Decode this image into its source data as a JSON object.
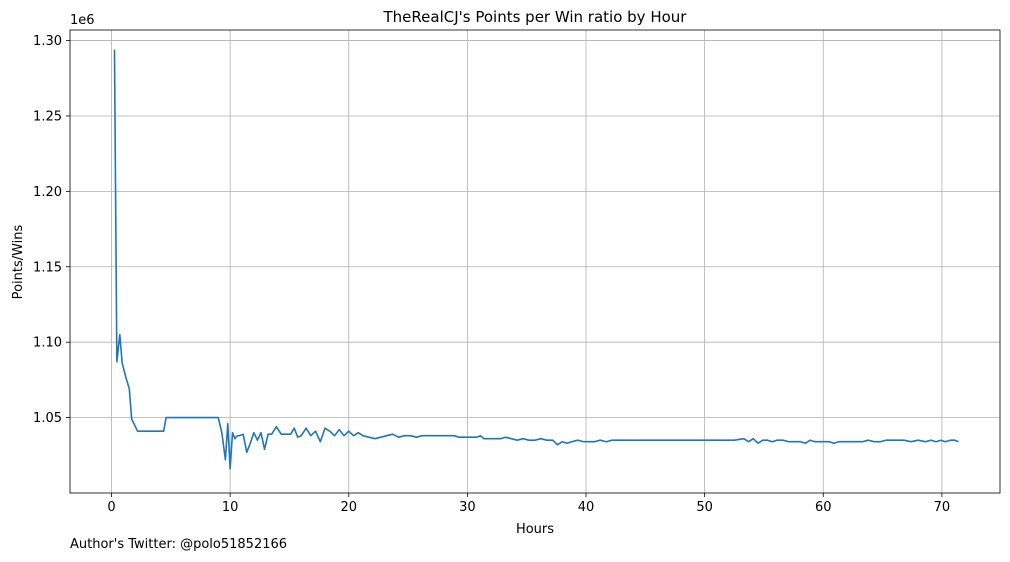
{
  "chart_data": {
    "type": "line",
    "title": "TheRealCJ's Points per Win ratio by Hour",
    "xlabel": "Hours",
    "ylabel": "Points/Wins",
    "y_offset_label": "1e6",
    "xlim": [
      -3.5,
      74.9
    ],
    "ylim": [
      1000000,
      1307000
    ],
    "x_ticks": [
      0,
      10,
      20,
      30,
      40,
      50,
      60,
      70
    ],
    "y_ticks": [
      1.0,
      1.05,
      1.1,
      1.15,
      1.2,
      1.25,
      1.3
    ],
    "y_tick_labels": [
      "",
      "1.05",
      "1.10",
      "1.15",
      "1.20",
      "1.25",
      "1.30"
    ],
    "grid": true,
    "line_color": "#1f77b4",
    "series": [
      {
        "x": [
          0.25,
          0.45,
          0.7,
          0.9,
          1.2,
          1.5,
          1.7,
          2.2,
          3.0,
          4.0,
          4.4,
          4.6,
          5.5,
          6.5,
          7.5,
          8.5,
          9.0,
          9.3,
          9.6,
          9.8,
          10.0,
          10.2,
          10.4,
          10.6,
          10.8,
          11.1,
          11.4,
          11.7,
          12.0,
          12.3,
          12.6,
          12.9,
          13.2,
          13.5,
          13.9,
          14.3,
          14.7,
          15.1,
          15.4,
          15.7,
          16.0,
          16.4,
          16.8,
          17.2,
          17.6,
          18.0,
          18.4,
          18.8,
          19.2,
          19.6,
          20.0,
          20.4,
          20.8,
          21.2,
          21.7,
          22.2,
          22.7,
          23.2,
          23.7,
          24.2,
          24.7,
          25.2,
          25.7,
          26.2,
          26.8,
          27.5,
          28.2,
          28.9,
          29.3,
          29.8,
          30.3,
          30.8,
          31.1,
          31.4,
          31.8,
          32.3,
          32.8,
          33.2,
          33.7,
          34.2,
          34.7,
          35.2,
          35.7,
          36.2,
          36.7,
          37.2,
          37.6,
          38.0,
          38.4,
          38.8,
          39.3,
          39.8,
          40.2,
          40.7,
          41.2,
          41.7,
          42.2,
          42.7,
          43.2,
          43.7,
          44.2,
          44.7,
          45.2,
          45.7,
          46.2,
          46.7,
          47.2,
          47.7,
          48.5,
          49.5,
          50.5,
          51.5,
          52.5,
          53.3,
          53.7,
          54.1,
          54.5,
          54.9,
          55.3,
          55.7,
          56.1,
          56.6,
          57.1,
          57.6,
          58.1,
          58.5,
          58.9,
          59.3,
          59.7,
          60.1,
          60.5,
          60.9,
          61.3,
          61.8,
          62.3,
          62.8,
          63.3,
          63.8,
          64.3,
          64.8,
          65.3,
          65.8,
          66.3,
          66.8,
          67.4,
          68.0,
          68.6,
          69.1,
          69.5,
          69.9,
          70.3,
          70.7,
          71.1,
          71.4
        ],
        "values": [
          1294000,
          1087000,
          1105000,
          1086000,
          1077000,
          1069000,
          1049000,
          1041000,
          1041000,
          1041000,
          1041000,
          1050000,
          1050000,
          1050000,
          1050000,
          1050000,
          1050000,
          1040000,
          1022000,
          1046000,
          1016000,
          1040000,
          1036000,
          1038000,
          1038000,
          1039000,
          1027000,
          1033000,
          1040000,
          1035000,
          1040000,
          1029000,
          1039000,
          1039000,
          1044000,
          1039000,
          1039000,
          1039000,
          1043000,
          1037000,
          1038000,
          1043000,
          1038000,
          1041000,
          1034000,
          1043000,
          1041000,
          1038000,
          1042000,
          1038000,
          1041000,
          1038000,
          1040000,
          1038000,
          1037000,
          1036000,
          1037000,
          1038000,
          1039000,
          1037000,
          1038000,
          1038000,
          1037000,
          1038000,
          1038000,
          1038000,
          1038000,
          1038000,
          1037000,
          1037000,
          1037000,
          1037000,
          1038000,
          1036000,
          1036000,
          1036000,
          1036000,
          1037000,
          1036000,
          1035000,
          1036000,
          1035000,
          1035000,
          1036000,
          1035000,
          1035000,
          1032000,
          1034000,
          1033000,
          1034000,
          1035000,
          1034000,
          1034000,
          1034000,
          1035000,
          1034000,
          1035000,
          1035000,
          1035000,
          1035000,
          1035000,
          1035000,
          1035000,
          1035000,
          1035000,
          1035000,
          1035000,
          1035000,
          1035000,
          1035000,
          1035000,
          1035000,
          1035000,
          1036000,
          1034000,
          1036000,
          1033000,
          1035000,
          1035000,
          1034000,
          1035000,
          1035000,
          1034000,
          1034000,
          1034000,
          1033000,
          1035000,
          1034000,
          1034000,
          1034000,
          1034000,
          1033000,
          1034000,
          1034000,
          1034000,
          1034000,
          1034000,
          1035000,
          1034000,
          1034000,
          1035000,
          1035000,
          1035000,
          1035000,
          1034000,
          1035000,
          1034000,
          1035000,
          1034000,
          1035000,
          1034000,
          1035000,
          1035000,
          1034000
        ]
      }
    ]
  },
  "footer": {
    "text": "Author's Twitter: @polo51852166"
  }
}
